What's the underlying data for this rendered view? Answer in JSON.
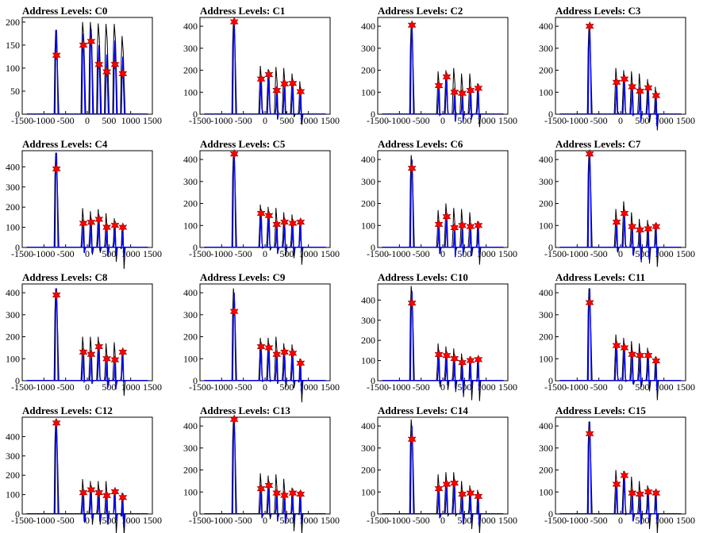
{
  "chart_data": [
    {
      "type": "histogram",
      "title": "Address Levels: C0",
      "xlim": [
        -1500,
        1500
      ],
      "ylim": [
        0,
        210
      ],
      "yticks": [
        0,
        50,
        100,
        150,
        200
      ],
      "xticks": [
        -1500,
        -1000,
        -500,
        0,
        500,
        1000,
        1500
      ],
      "xtick_labels": [
        "-1500",
        "-1000",
        "-500",
        "0",
        "500",
        "1000",
        "1500"
      ],
      "peaks_x": [
        -710,
        -90,
        90,
        270,
        450,
        640,
        820
      ],
      "black_peaks": [
        183,
        200,
        200,
        197,
        196,
        196,
        170
      ],
      "blue_peaks": [
        183,
        175,
        185,
        150,
        130,
        160,
        125
      ],
      "markers": [
        128,
        150,
        158,
        108,
        92,
        108,
        88
      ]
    },
    {
      "type": "histogram",
      "title": "Address Levels: C1",
      "xlim": [
        -1500,
        1500
      ],
      "ylim": [
        0,
        440
      ],
      "yticks": [
        0,
        100,
        200,
        300,
        400
      ],
      "xticks": [
        -1500,
        -1000,
        -500,
        0,
        500,
        1000,
        1500
      ],
      "xtick_labels": [
        "-1500",
        "-1000",
        "-500",
        "0",
        "500",
        "1000",
        "1500"
      ],
      "peaks_x": [
        -710,
        -90,
        90,
        270,
        450,
        640,
        820
      ],
      "black_peaks": [
        430,
        220,
        205,
        215,
        210,
        185,
        150
      ],
      "blue_peaks": [
        430,
        170,
        180,
        120,
        150,
        150,
        110
      ],
      "markers": [
        420,
        160,
        180,
        108,
        138,
        140,
        103
      ]
    },
    {
      "type": "histogram",
      "title": "Address Levels: C2",
      "xlim": [
        -1500,
        1500
      ],
      "ylim": [
        0,
        440
      ],
      "yticks": [
        0,
        100,
        200,
        300,
        400
      ],
      "xticks": [
        -1500,
        -1000,
        -500,
        0,
        500,
        1000,
        1500
      ],
      "xtick_labels": [
        "-1500",
        "-1000",
        "-500",
        "0",
        "500",
        "1000",
        "1500"
      ],
      "peaks_x": [
        -710,
        -90,
        90,
        270,
        450,
        640,
        820
      ],
      "black_peaks": [
        410,
        195,
        200,
        210,
        185,
        185,
        140
      ],
      "blue_peaks": [
        410,
        140,
        175,
        110,
        110,
        120,
        125
      ],
      "markers": [
        405,
        130,
        170,
        100,
        95,
        108,
        118
      ]
    },
    {
      "type": "histogram",
      "title": "Address Levels: C3",
      "xlim": [
        -1500,
        1500
      ],
      "ylim": [
        0,
        440
      ],
      "yticks": [
        0,
        100,
        200,
        300,
        400
      ],
      "xticks": [
        -1500,
        -1000,
        -500,
        0,
        500,
        1000,
        1500
      ],
      "xtick_labels": [
        "-1500",
        "-1000",
        "-500",
        "0",
        "500",
        "1000",
        "1500"
      ],
      "peaks_x": [
        -710,
        -90,
        90,
        270,
        450,
        640,
        820
      ],
      "black_peaks": [
        405,
        210,
        200,
        195,
        185,
        160,
        125
      ],
      "blue_peaks": [
        405,
        150,
        165,
        140,
        110,
        130,
        90
      ],
      "markers": [
        400,
        145,
        160,
        125,
        105,
        120,
        85
      ]
    },
    {
      "type": "histogram",
      "title": "Address Levels: C4",
      "xlim": [
        -1500,
        1500
      ],
      "ylim": [
        0,
        480
      ],
      "yticks": [
        0,
        100,
        200,
        300,
        400
      ],
      "xticks": [
        -1500,
        -1000,
        -500,
        0,
        500,
        1000,
        1500
      ],
      "xtick_labels": [
        "-1500",
        "-1000",
        "-500",
        "0",
        "500",
        "1000",
        "1500"
      ],
      "peaks_x": [
        -710,
        -90,
        90,
        270,
        450,
        640,
        820
      ],
      "black_peaks": [
        470,
        195,
        180,
        190,
        170,
        145,
        110
      ],
      "blue_peaks": [
        470,
        130,
        130,
        150,
        115,
        120,
        110
      ],
      "markers": [
        390,
        120,
        125,
        140,
        100,
        110,
        100
      ]
    },
    {
      "type": "histogram",
      "title": "Address Levels: C5",
      "xlim": [
        -1500,
        1500
      ],
      "ylim": [
        0,
        440
      ],
      "yticks": [
        0,
        100,
        200,
        300,
        400
      ],
      "xticks": [
        -1500,
        -1000,
        -500,
        0,
        500,
        1000,
        1500
      ],
      "xtick_labels": [
        "-1500",
        "-1000",
        "-500",
        "0",
        "500",
        "1000",
        "1500"
      ],
      "peaks_x": [
        -710,
        -90,
        90,
        270,
        450,
        640,
        820
      ],
      "black_peaks": [
        435,
        195,
        185,
        180,
        160,
        150,
        120
      ],
      "blue_peaks": [
        435,
        170,
        160,
        115,
        130,
        120,
        125
      ],
      "markers": [
        425,
        155,
        145,
        105,
        115,
        110,
        115
      ]
    },
    {
      "type": "histogram",
      "title": "Address Levels: C6",
      "xlim": [
        -1500,
        1500
      ],
      "ylim": [
        0,
        440
      ],
      "yticks": [
        0,
        100,
        200,
        300,
        400
      ],
      "xticks": [
        -1500,
        -1000,
        -500,
        0,
        500,
        1000,
        1500
      ],
      "xtick_labels": [
        "-1500",
        "-1000",
        "-500",
        "0",
        "500",
        "1000",
        "1500"
      ],
      "peaks_x": [
        -710,
        -90,
        90,
        270,
        450,
        640,
        820
      ],
      "black_peaks": [
        420,
        170,
        200,
        180,
        175,
        160,
        120
      ],
      "blue_peaks": [
        400,
        115,
        150,
        100,
        110,
        105,
        110
      ],
      "markers": [
        360,
        105,
        140,
        90,
        100,
        95,
        100
      ]
    },
    {
      "type": "histogram",
      "title": "Address Levels: C7",
      "xlim": [
        -1500,
        1500
      ],
      "ylim": [
        0,
        440
      ],
      "yticks": [
        0,
        100,
        200,
        300,
        400
      ],
      "xticks": [
        -1500,
        -1000,
        -500,
        0,
        500,
        1000,
        1500
      ],
      "xtick_labels": [
        "-1500",
        "-1000",
        "-500",
        "0",
        "500",
        "1000",
        "1500"
      ],
      "peaks_x": [
        -710,
        -90,
        90,
        270,
        450,
        640,
        820
      ],
      "black_peaks": [
        440,
        175,
        210,
        160,
        130,
        125,
        110
      ],
      "blue_peaks": [
        440,
        125,
        160,
        110,
        90,
        90,
        105
      ],
      "markers": [
        425,
        115,
        155,
        95,
        80,
        85,
        95
      ]
    },
    {
      "type": "histogram",
      "title": "Address Levels: C8",
      "xlim": [
        -1500,
        1500
      ],
      "ylim": [
        0,
        440
      ],
      "yticks": [
        0,
        100,
        200,
        300,
        400
      ],
      "xticks": [
        -1500,
        -1000,
        -500,
        0,
        500,
        1000,
        1500
      ],
      "xtick_labels": [
        "-1500",
        "-1000",
        "-500",
        "0",
        "500",
        "1000",
        "1500"
      ],
      "peaks_x": [
        -710,
        -90,
        90,
        270,
        450,
        640,
        820
      ],
      "black_peaks": [
        420,
        200,
        200,
        200,
        170,
        175,
        130
      ],
      "blue_peaks": [
        420,
        140,
        130,
        165,
        110,
        105,
        140
      ],
      "markers": [
        390,
        130,
        120,
        155,
        100,
        95,
        130
      ]
    },
    {
      "type": "histogram",
      "title": "Address Levels: C9",
      "xlim": [
        -1500,
        1500
      ],
      "ylim": [
        0,
        440
      ],
      "yticks": [
        0,
        100,
        200,
        300,
        400
      ],
      "xticks": [
        -1500,
        -1000,
        -500,
        0,
        500,
        1000,
        1500
      ],
      "xtick_labels": [
        "-1500",
        "-1000",
        "-500",
        "0",
        "500",
        "1000",
        "1500"
      ],
      "peaks_x": [
        -710,
        -90,
        90,
        270,
        450,
        640,
        820
      ],
      "black_peaks": [
        420,
        195,
        195,
        200,
        170,
        165,
        100
      ],
      "blue_peaks": [
        400,
        170,
        165,
        130,
        140,
        135,
        90
      ],
      "markers": [
        315,
        155,
        150,
        120,
        130,
        125,
        80
      ]
    },
    {
      "type": "histogram",
      "title": "Address Levels: C10",
      "xlim": [
        -1500,
        1500
      ],
      "ylim": [
        0,
        480
      ],
      "yticks": [
        0,
        100,
        200,
        300,
        400
      ],
      "xticks": [
        -1500,
        -1000,
        -500,
        0,
        500,
        1000,
        1500
      ],
      "xtick_labels": [
        "-1500",
        "-1000",
        "-500",
        "0",
        "500",
        "1000",
        "1500"
      ],
      "peaks_x": [
        -710,
        -90,
        90,
        270,
        450,
        640,
        820
      ],
      "black_peaks": [
        470,
        185,
        170,
        160,
        135,
        120,
        115
      ],
      "blue_peaks": [
        445,
        140,
        135,
        120,
        100,
        110,
        115
      ],
      "markers": [
        385,
        130,
        125,
        110,
        90,
        100,
        105
      ]
    },
    {
      "type": "histogram",
      "title": "Address Levels: C11",
      "xlim": [
        -1500,
        1500
      ],
      "ylim": [
        0,
        440
      ],
      "yticks": [
        0,
        100,
        200,
        300,
        400
      ],
      "xticks": [
        -1500,
        -1000,
        -500,
        0,
        500,
        1000,
        1500
      ],
      "xtick_labels": [
        "-1500",
        "-1000",
        "-500",
        "0",
        "500",
        "1000",
        "1500"
      ],
      "peaks_x": [
        -710,
        -90,
        90,
        270,
        450,
        640,
        820
      ],
      "black_peaks": [
        420,
        210,
        195,
        180,
        170,
        150,
        110
      ],
      "blue_peaks": [
        420,
        175,
        160,
        130,
        125,
        125,
        100
      ],
      "markers": [
        355,
        160,
        150,
        120,
        115,
        115,
        90
      ]
    },
    {
      "type": "histogram",
      "title": "Address Levels: C12",
      "xlim": [
        -1500,
        1500
      ],
      "ylim": [
        0,
        500
      ],
      "yticks": [
        0,
        100,
        200,
        300,
        400
      ],
      "xticks": [
        -1500,
        -1000,
        -500,
        0,
        500,
        1000,
        1500
      ],
      "xtick_labels": [
        "-1500",
        "-1000",
        "-500",
        "0",
        "500",
        "1000",
        "1500"
      ],
      "peaks_x": [
        -710,
        -90,
        90,
        270,
        450,
        640,
        820
      ],
      "black_peaks": [
        490,
        180,
        170,
        170,
        170,
        125,
        110
      ],
      "blue_peaks": [
        470,
        125,
        140,
        125,
        110,
        130,
        95
      ],
      "markers": [
        470,
        110,
        125,
        110,
        95,
        115,
        85
      ]
    },
    {
      "type": "histogram",
      "title": "Address Levels: C13",
      "xlim": [
        -1500,
        1500
      ],
      "ylim": [
        0,
        440
      ],
      "yticks": [
        0,
        100,
        200,
        300,
        400
      ],
      "xticks": [
        -1500,
        -1000,
        -500,
        0,
        500,
        1000,
        1500
      ],
      "xtick_labels": [
        "-1500",
        "-1000",
        "-500",
        "0",
        "500",
        "1000",
        "1500"
      ],
      "peaks_x": [
        -710,
        -90,
        90,
        270,
        450,
        640,
        820
      ],
      "black_peaks": [
        440,
        185,
        175,
        180,
        160,
        120,
        105
      ],
      "blue_peaks": [
        440,
        125,
        140,
        110,
        100,
        105,
        100
      ],
      "markers": [
        430,
        115,
        130,
        95,
        85,
        95,
        90
      ]
    },
    {
      "type": "histogram",
      "title": "Address Levels: C14",
      "xlim": [
        -1500,
        1500
      ],
      "ylim": [
        0,
        440
      ],
      "yticks": [
        0,
        100,
        200,
        300,
        400
      ],
      "xticks": [
        -1500,
        -1000,
        -500,
        0,
        500,
        1000,
        1500
      ],
      "xtick_labels": [
        "-1500",
        "-1000",
        "-500",
        "0",
        "500",
        "1000",
        "1500"
      ],
      "peaks_x": [
        -710,
        -90,
        90,
        270,
        450,
        640,
        820
      ],
      "black_peaks": [
        430,
        180,
        190,
        190,
        150,
        130,
        110
      ],
      "blue_peaks": [
        400,
        125,
        145,
        150,
        100,
        105,
        90
      ],
      "markers": [
        340,
        115,
        135,
        140,
        90,
        95,
        80
      ]
    },
    {
      "type": "histogram",
      "title": "Address Levels: C15",
      "xlim": [
        -1500,
        1500
      ],
      "ylim": [
        0,
        440
      ],
      "yticks": [
        0,
        100,
        200,
        300,
        400
      ],
      "xticks": [
        -1500,
        -1000,
        -500,
        0,
        500,
        1000,
        1500
      ],
      "xtick_labels": [
        "-1500",
        "-1000",
        "-500",
        "0",
        "500",
        "1000",
        "1500"
      ],
      "peaks_x": [
        -710,
        -90,
        90,
        270,
        450,
        640,
        820
      ],
      "black_peaks": [
        420,
        200,
        195,
        170,
        150,
        130,
        110
      ],
      "blue_peaks": [
        420,
        150,
        185,
        110,
        100,
        115,
        110
      ],
      "markers": [
        365,
        135,
        175,
        95,
        90,
        100,
        95
      ]
    }
  ],
  "colors": {
    "black_series": "#000000",
    "blue_series": "#0000ff",
    "marker": "#ff0000",
    "marker_edge": "#8b0000",
    "axes": "#000000"
  }
}
